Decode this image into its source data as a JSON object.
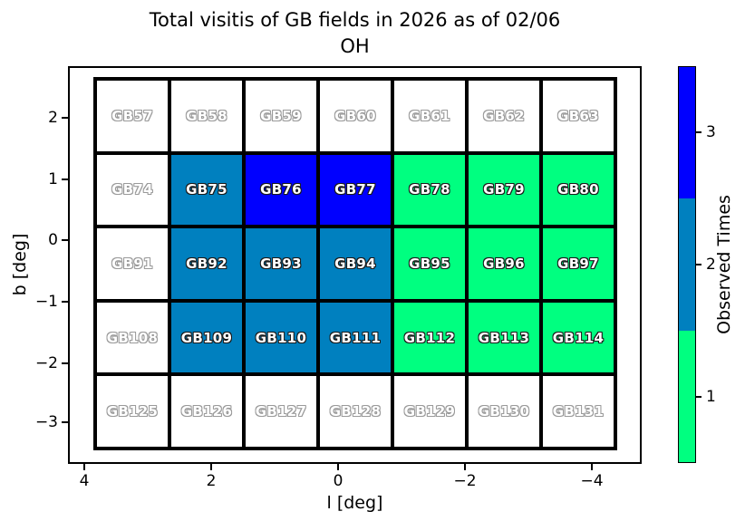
{
  "title": {
    "line1": "Total visitis of GB fields in 2026 as of 02/06",
    "line2": "OH"
  },
  "chart_data": {
    "type": "heatmap",
    "title": "Total visitis of GB fields in 2026 as of 02/06 OH",
    "xlabel": "l [deg]",
    "ylabel": "b [deg]",
    "x_tick_labels": [
      "4",
      "2",
      "0",
      "−2",
      "−4"
    ],
    "y_tick_labels": [
      "2",
      "1",
      "0",
      "−1",
      "−2",
      "−3"
    ],
    "x_axis_inverted": true,
    "grid_on": false,
    "colorbar": {
      "label": "Observed Times",
      "tick_labels": [
        "3",
        "2",
        "1"
      ],
      "segments_top_to_bottom": [
        {
          "value": 3,
          "color": "#0000FF"
        },
        {
          "value": 2,
          "color": "#0080BF"
        },
        {
          "value": 1,
          "color": "#00FF80"
        }
      ],
      "unobserved_color": "#FFFFFF"
    },
    "rows": [
      [
        {
          "name": "GB57",
          "observed": 0
        },
        {
          "name": "GB58",
          "observed": 0
        },
        {
          "name": "GB59",
          "observed": 0
        },
        {
          "name": "GB60",
          "observed": 0
        },
        {
          "name": "GB61",
          "observed": 0
        },
        {
          "name": "GB62",
          "observed": 0
        },
        {
          "name": "GB63",
          "observed": 0
        }
      ],
      [
        {
          "name": "GB74",
          "observed": 0
        },
        {
          "name": "GB75",
          "observed": 2
        },
        {
          "name": "GB76",
          "observed": 3
        },
        {
          "name": "GB77",
          "observed": 3
        },
        {
          "name": "GB78",
          "observed": 1
        },
        {
          "name": "GB79",
          "observed": 1
        },
        {
          "name": "GB80",
          "observed": 1
        }
      ],
      [
        {
          "name": "GB91",
          "observed": 0
        },
        {
          "name": "GB92",
          "observed": 2
        },
        {
          "name": "GB93",
          "observed": 2
        },
        {
          "name": "GB94",
          "observed": 2
        },
        {
          "name": "GB95",
          "observed": 1
        },
        {
          "name": "GB96",
          "observed": 1
        },
        {
          "name": "GB97",
          "observed": 1
        }
      ],
      [
        {
          "name": "GB108",
          "observed": 0
        },
        {
          "name": "GB109",
          "observed": 2
        },
        {
          "name": "GB110",
          "observed": 2
        },
        {
          "name": "GB111",
          "observed": 2
        },
        {
          "name": "GB112",
          "observed": 1
        },
        {
          "name": "GB113",
          "observed": 1
        },
        {
          "name": "GB114",
          "observed": 1
        }
      ],
      [
        {
          "name": "GB125",
          "observed": 0
        },
        {
          "name": "GB126",
          "observed": 0
        },
        {
          "name": "GB127",
          "observed": 0
        },
        {
          "name": "GB128",
          "observed": 0
        },
        {
          "name": "GB129",
          "observed": 0
        },
        {
          "name": "GB130",
          "observed": 0
        },
        {
          "name": "GB131",
          "observed": 0
        }
      ]
    ]
  }
}
